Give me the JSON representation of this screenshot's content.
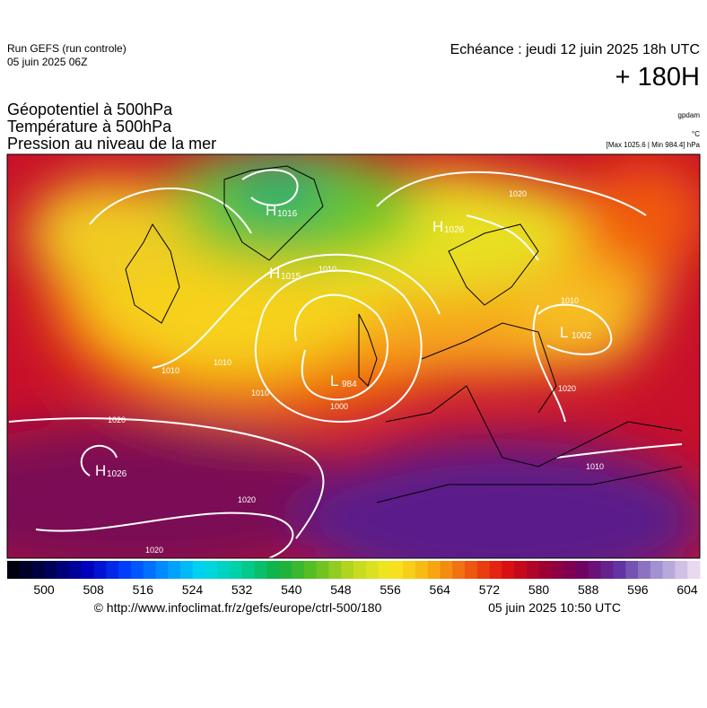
{
  "header": {
    "run": "Run GEFS (run controle)",
    "run_date": "05 juin 2025 06Z",
    "echeance": "Echéance : jeudi 12 juin 2025 18h UTC",
    "lead": "+ 180H",
    "fields": [
      "Géopotentiel à 500hPa",
      "Température à 500hPa",
      "Pression au niveau de la mer"
    ],
    "units": [
      "gpdam",
      "°C"
    ],
    "extremes": "[Max 1025.6 | Min 984.4] hPa"
  },
  "map": {
    "centers": [
      {
        "type": "H",
        "value": 1016
      },
      {
        "type": "H",
        "value": 1015
      },
      {
        "type": "L",
        "value": 984
      },
      {
        "type": "H",
        "value": 1026
      },
      {
        "type": "L",
        "value": 1002
      },
      {
        "type": "H",
        "value": 1026
      }
    ],
    "isobar_labels": [
      1020,
      1020,
      1020,
      1010,
      1010,
      1010,
      1000,
      1010,
      1020,
      1010,
      1020,
      1010
    ]
  },
  "colorbar": {
    "ticks": [
      500,
      508,
      516,
      524,
      532,
      540,
      548,
      556,
      564,
      572,
      580,
      588,
      596,
      604
    ]
  },
  "footer": {
    "url": "© http://www.infoclimat.fr/z/gefs/europe/ctrl-500/180",
    "issued": "05 juin 2025 10:50 UTC"
  }
}
